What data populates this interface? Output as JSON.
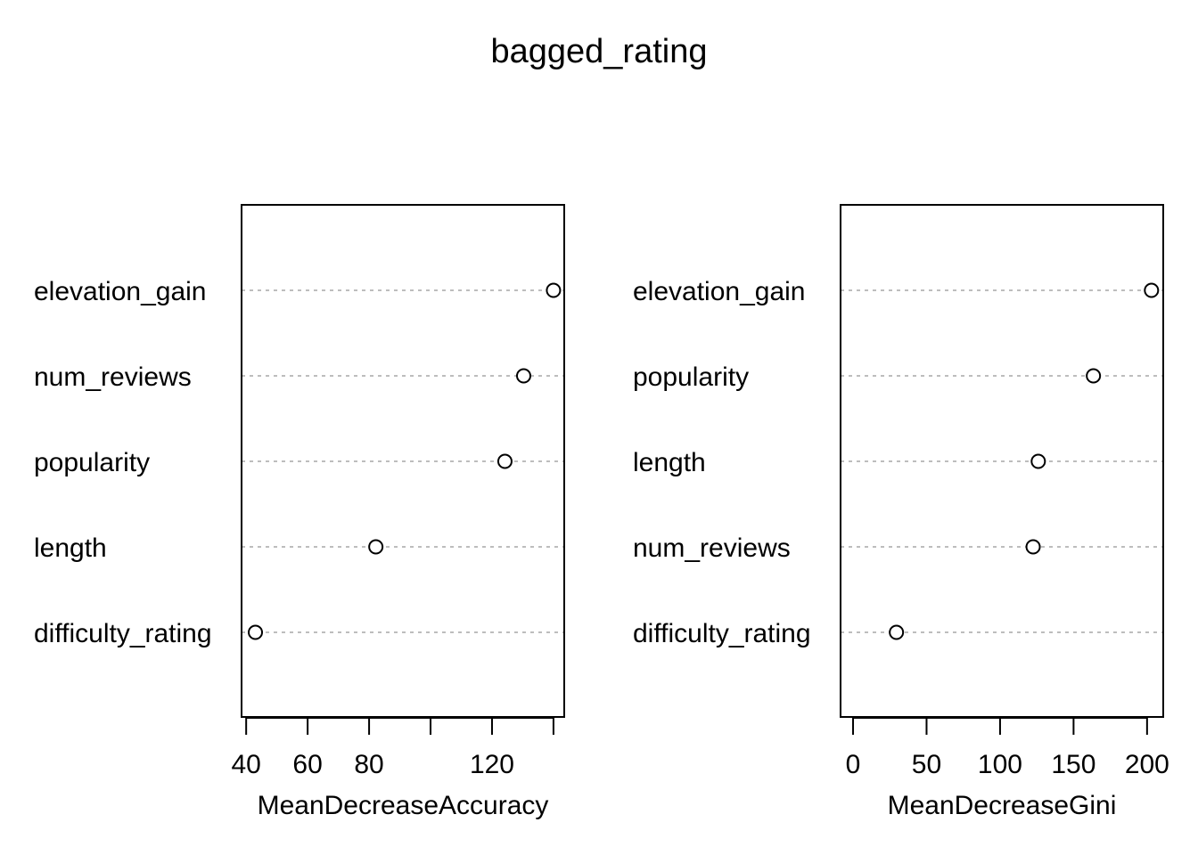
{
  "title": "bagged_rating",
  "chart_data": [
    {
      "type": "scatter",
      "xlabel": "MeanDecreaseAccuracy",
      "xlim": [
        38.5,
        143.5
      ],
      "xticks": [
        40,
        60,
        80,
        100,
        120,
        140
      ],
      "xtick_labels": [
        "40",
        "60",
        "80",
        "",
        "120",
        ""
      ],
      "categories": [
        "elevation_gain",
        "num_reviews",
        "popularity",
        "length",
        "difficulty_rating"
      ],
      "values": [
        140,
        130.3,
        124.2,
        82.2,
        43
      ],
      "grid": "dotted horizontal"
    },
    {
      "type": "scatter",
      "xlabel": "MeanDecreaseGini",
      "xlim": [
        -8.5,
        211
      ],
      "xticks": [
        0,
        50,
        100,
        150,
        200
      ],
      "xtick_labels": [
        "0",
        "50",
        "100",
        "150",
        "200"
      ],
      "categories": [
        "elevation_gain",
        "popularity",
        "length",
        "num_reviews",
        "difficulty_rating"
      ],
      "values": [
        203,
        163.5,
        126,
        122.5,
        29.5
      ],
      "grid": "dotted horizontal"
    }
  ]
}
